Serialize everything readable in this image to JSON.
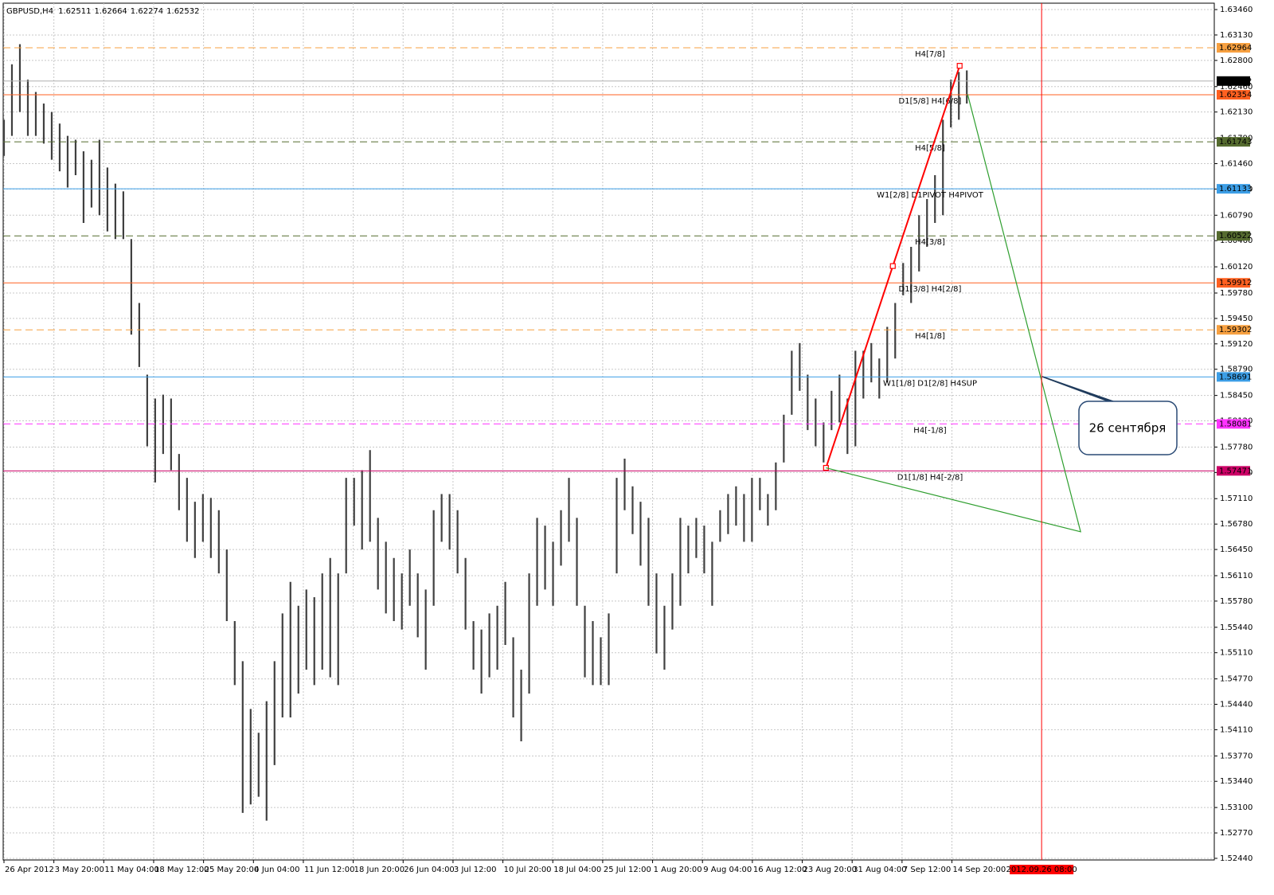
{
  "chart_data": {
    "type": "hlbar",
    "title": "GBPUSD,H4",
    "ohlc": [
      1.62511,
      1.62664,
      1.62274,
      1.62532
    ],
    "color": "#404040",
    "grid": true,
    "xlim": [
      -0.1,
      152.1
    ],
    "ylim": [
      1.52419,
      1.63543
    ],
    "xticks": [
      {
        "value": 0,
        "label": "26 Apr 2012"
      },
      {
        "value": 6.27,
        "label": "3 May 20:00"
      },
      {
        "value": 12.54,
        "label": "11 May 04:00"
      },
      {
        "value": 18.81,
        "label": "18 May 12:00"
      },
      {
        "value": 25.08,
        "label": "25 May 20:00"
      },
      {
        "value": 31.35,
        "label": "4 Jun 04:00"
      },
      {
        "value": 37.62,
        "label": "11 Jun 12:00"
      },
      {
        "value": 43.89,
        "label": "18 Jun 20:00"
      },
      {
        "value": 50.16,
        "label": "26 Jun 04:00"
      },
      {
        "value": 56.43,
        "label": "3 Jul 12:00"
      },
      {
        "value": 62.7,
        "label": "10 Jul 20:00"
      },
      {
        "value": 68.97,
        "label": "18 Jul 04:00"
      },
      {
        "value": 75.24,
        "label": "25 Jul 12:00"
      },
      {
        "value": 81.51,
        "label": "1 Aug 20:00"
      },
      {
        "value": 87.78,
        "label": "9 Aug 04:00"
      },
      {
        "value": 94.05,
        "label": "16 Aug 12:00"
      },
      {
        "value": 100.32,
        "label": "23 Aug 20:00"
      },
      {
        "value": 106.59,
        "label": "31 Aug 04:00"
      },
      {
        "value": 112.86,
        "label": "7 Sep 12:00"
      },
      {
        "value": 119.13,
        "label": "14 Sep 20:00"
      }
    ],
    "yticks": [
      {
        "value": 1.5244,
        "label": "1.52440"
      },
      {
        "value": 1.5277,
        "label": "1.52770"
      },
      {
        "value": 1.531,
        "label": "1.53100"
      },
      {
        "value": 1.5344,
        "label": "1.53440"
      },
      {
        "value": 1.5377,
        "label": "1.53770"
      },
      {
        "value": 1.5411,
        "label": "1.54110"
      },
      {
        "value": 1.5444,
        "label": "1.54440"
      },
      {
        "value": 1.5477,
        "label": "1.54770"
      },
      {
        "value": 1.5511,
        "label": "1.55110"
      },
      {
        "value": 1.5544,
        "label": "1.55440"
      },
      {
        "value": 1.5578,
        "label": "1.55780"
      },
      {
        "value": 1.5611,
        "label": "1.56110"
      },
      {
        "value": 1.5645,
        "label": "1.56450"
      },
      {
        "value": 1.5678,
        "label": "1.56780"
      },
      {
        "value": 1.5711,
        "label": "1.57110"
      },
      {
        "value": 1.5745,
        "label": "1.57450"
      },
      {
        "value": 1.5778,
        "label": "1.57780"
      },
      {
        "value": 1.5812,
        "label": "1.58120"
      },
      {
        "value": 1.5845,
        "label": "1.58450"
      },
      {
        "value": 1.5879,
        "label": "1.58790"
      },
      {
        "value": 1.5912,
        "label": "1.59120"
      },
      {
        "value": 1.5945,
        "label": "1.59450"
      },
      {
        "value": 1.5978,
        "label": "1.59780"
      },
      {
        "value": 1.6012,
        "label": "1.60120"
      },
      {
        "value": 1.6046,
        "label": "1.60460"
      },
      {
        "value": 1.6079,
        "label": "1.60790"
      },
      {
        "value": 1.6113,
        "label": "1.61130"
      },
      {
        "value": 1.6146,
        "label": "1.61460"
      },
      {
        "value": 1.6179,
        "label": "1.61790"
      },
      {
        "value": 1.6213,
        "label": "1.62130"
      },
      {
        "value": 1.6246,
        "label": "1.62460"
      },
      {
        "value": 1.628,
        "label": "1.62800"
      },
      {
        "value": 1.6313,
        "label": "1.63130"
      },
      {
        "value": 1.6346,
        "label": "1.63460"
      }
    ],
    "high": [
      1.6203,
      1.6275,
      1.6301,
      1.6255,
      1.6239,
      1.6224,
      1.6213,
      1.6198,
      1.6182,
      1.6177,
      1.6162,
      1.6151,
      1.6177,
      1.6141,
      1.612,
      1.611,
      1.6048,
      1.5965,
      1.5872,
      1.5841,
      1.5846,
      1.5841,
      1.5769,
      1.5738,
      1.5707,
      1.5717,
      1.5712,
      1.5696,
      1.5645,
      1.5552,
      1.55,
      1.5438,
      1.5407,
      1.5448,
      1.55,
      1.5562,
      1.5603,
      1.5572,
      1.5593,
      1.5583,
      1.5614,
      1.5634,
      1.5614,
      1.5738,
      1.5738,
      1.5748,
      1.5774,
      1.5686,
      1.5655,
      1.5634,
      1.5614,
      1.5645,
      1.5614,
      1.5593,
      1.5696,
      1.5717,
      1.5717,
      1.5696,
      1.5634,
      1.5552,
      1.5541,
      1.5562,
      1.5572,
      1.5603,
      1.5531,
      1.5489,
      1.5614,
      1.5686,
      1.5676,
      1.5655,
      1.5696,
      1.5738,
      1.5686,
      1.5572,
      1.5552,
      1.5531,
      1.5562,
      1.5738,
      1.5763,
      1.5727,
      1.5707,
      1.5686,
      1.5614,
      1.5572,
      1.5614,
      1.5686,
      1.5676,
      1.5686,
      1.5676,
      1.5655,
      1.5696,
      1.5717,
      1.5727,
      1.5717,
      1.5738,
      1.5738,
      1.5717,
      1.5758,
      1.582,
      1.5903,
      1.5913,
      1.5872,
      1.5841,
      1.581,
      1.5851,
      1.5872,
      1.5841,
      1.5903,
      1.5903,
      1.5913,
      1.5893,
      1.5934,
      1.5965,
      1.6017,
      1.6038,
      1.6079,
      1.61,
      1.6131,
      1.6203,
      1.6255,
      1.6265,
      1.6267
    ],
    "low": [
      1.6156,
      1.6182,
      1.6213,
      1.6182,
      1.6182,
      1.6172,
      1.6151,
      1.6136,
      1.6115,
      1.6131,
      1.6069,
      1.6089,
      1.6079,
      1.6058,
      1.6048,
      1.6048,
      1.5924,
      1.5882,
      1.5779,
      1.5732,
      1.5769,
      1.5748,
      1.5696,
      1.5655,
      1.5634,
      1.5655,
      1.5634,
      1.5614,
      1.5552,
      1.5469,
      1.5303,
      1.5314,
      1.5324,
      1.5293,
      1.5365,
      1.5427,
      1.5427,
      1.5458,
      1.5489,
      1.5469,
      1.5489,
      1.5479,
      1.5469,
      1.5614,
      1.5676,
      1.5645,
      1.5655,
      1.5593,
      1.5562,
      1.5552,
      1.5541,
      1.5572,
      1.5531,
      1.5489,
      1.5572,
      1.5655,
      1.5645,
      1.5614,
      1.5541,
      1.5489,
      1.5458,
      1.5479,
      1.5489,
      1.5521,
      1.5427,
      1.5396,
      1.5458,
      1.5572,
      1.5593,
      1.5572,
      1.5624,
      1.5655,
      1.5572,
      1.5479,
      1.5469,
      1.5469,
      1.5469,
      1.5614,
      1.5696,
      1.5665,
      1.5624,
      1.5572,
      1.551,
      1.5489,
      1.5541,
      1.5572,
      1.5614,
      1.5634,
      1.5614,
      1.5572,
      1.5655,
      1.5665,
      1.5676,
      1.5655,
      1.5655,
      1.5696,
      1.5676,
      1.5696,
      1.5758,
      1.582,
      1.5851,
      1.58,
      1.5779,
      1.5758,
      1.58,
      1.581,
      1.5769,
      1.5779,
      1.5841,
      1.5862,
      1.5841,
      1.5862,
      1.5893,
      1.5975,
      1.5965,
      1.6006,
      1.6038,
      1.6069,
      1.6079,
      1.6193,
      1.6203,
      1.6224
    ],
    "current_price": 1.62532,
    "levels": [
      {
        "price": 1.62964,
        "label": "H4[7/8]",
        "color": "#f7a040",
        "dashed": true
      },
      {
        "price": 1.62354,
        "label": "D1[5/8] H4[6/8]",
        "color": "#ff6020",
        "dashed": false
      },
      {
        "price": 1.61743,
        "label": "H4[5/8]",
        "color": "#556b2f",
        "dashed": true
      },
      {
        "price": 1.61133,
        "label": "W1[2/8] D1PIVOT H4PIVOT",
        "color": "#3c9ee6",
        "dashed": false
      },
      {
        "price": 1.60522,
        "label": "H4[3/8]",
        "color": "#556b2f",
        "dashed": true
      },
      {
        "price": 1.59912,
        "label": "D1[3/8] H4[2/8]",
        "color": "#ff6020",
        "dashed": false
      },
      {
        "price": 1.59302,
        "label": "H4[1/8]",
        "color": "#f7a040",
        "dashed": true
      },
      {
        "price": 1.58691,
        "label": "W1[1/8] D1[2/8] H4SUP",
        "color": "#3c9ee6",
        "dashed": false
      },
      {
        "price": 1.58081,
        "label": "H4[-1/8]",
        "color": "#ff33ff",
        "dashed": true
      },
      {
        "price": 1.57471,
        "label": "D1[1/8] H4[-2/8]",
        "color": "#cc0066",
        "dashed": false
      }
    ],
    "objects": [
      {
        "color": "#ff0000",
        "x": [
          103.3,
          111.7,
          120.1
        ],
        "y": [
          1.5751,
          1.6013,
          1.6273
        ]
      },
      {
        "color": "#2e9e2e",
        "x": [
          121.1,
          135.3,
          103.3
        ],
        "y": [
          1.6236,
          1.5668,
          1.5751
        ]
      }
    ],
    "vline": {
      "x": 130.4,
      "label": "2012.09.26 08:00",
      "color": "#ff0000"
    },
    "callout": "26 сентября"
  }
}
